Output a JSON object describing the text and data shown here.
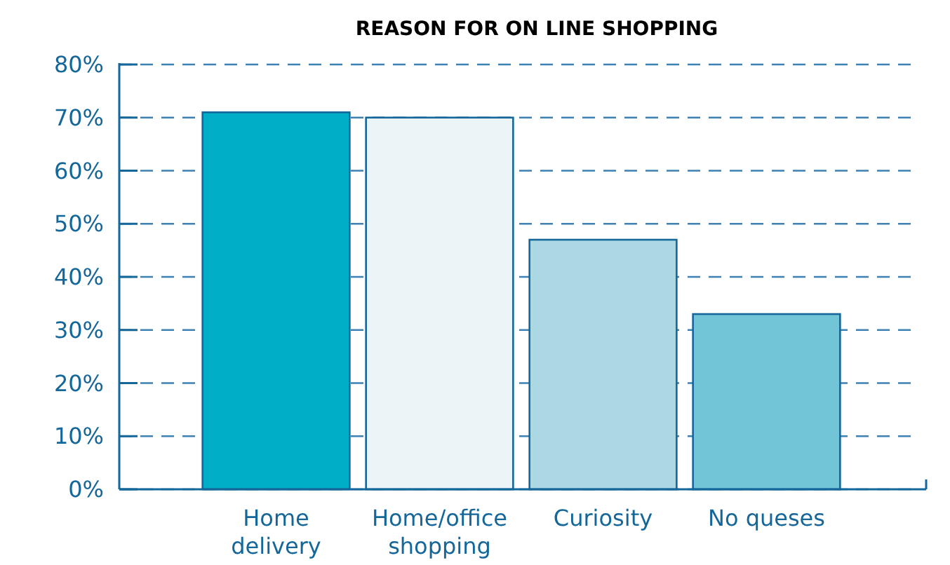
{
  "chart_data": {
    "type": "bar",
    "title": "REASON FOR ON LINE SHOPPING",
    "categories": [
      "Home delivery",
      "Home/office shopping",
      "Curiosity",
      "No queses"
    ],
    "values": [
      71,
      70,
      47,
      33
    ],
    "colors": [
      "#00aec7",
      "#ebf4f6",
      "#acd8e4",
      "#72c4d7"
    ],
    "ylim": [
      0,
      80
    ],
    "yticks": [
      {
        "value": 0,
        "label": "0%"
      },
      {
        "value": 10,
        "label": "10%"
      },
      {
        "value": 20,
        "label": "20%"
      },
      {
        "value": 30,
        "label": "30%"
      },
      {
        "value": 40,
        "label": "40%"
      },
      {
        "value": 50,
        "label": "50%"
      },
      {
        "value": 60,
        "label": "60%"
      },
      {
        "value": 70,
        "label": "70%"
      },
      {
        "value": 80,
        "label": "80%"
      }
    ],
    "grid": "y",
    "line_style": "dashed"
  }
}
